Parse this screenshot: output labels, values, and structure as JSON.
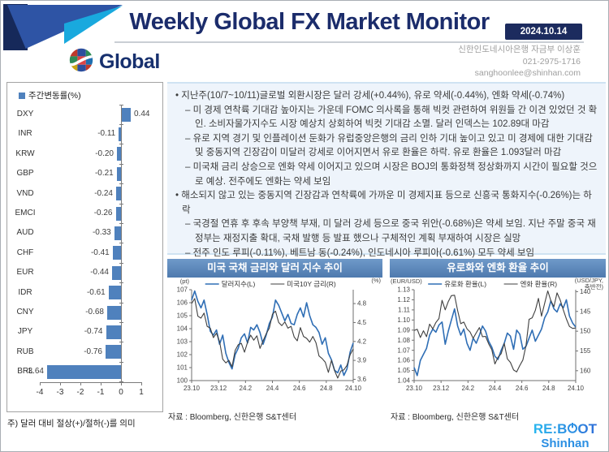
{
  "header": {
    "title": "Weekly Global FX Market Monitor",
    "date": "2024.10.14",
    "brand": "Global",
    "contact_lines": [
      "신한인도네시아은행 자금부 이상훈",
      "021-2975-1716",
      "sanghoonlee@shinhan.com"
    ]
  },
  "analysis": {
    "bullets": [
      {
        "level": 1,
        "text": "지난주(10/7~10/11)글로벌 외환시장은 달러 강세(+0.44%), 유로 약세(-0.44%), 엔화 약세(-0.74%)"
      },
      {
        "level": 2,
        "text": "미 경제 연착륙 기대감 높아지는 가운데 FOMC 의사록을 통해 빅컷 관련하여 위원들 간 이견 있었던 것 확인. 소비자물가지수도 시장 예상치 상회하여 빅컷 기대감 소멸. 달러 인덱스는 102.89대 마감"
      },
      {
        "level": 2,
        "text": "유로 지역 경기 및 인플레이션 둔화가 유럽중앙은행의 금리 인하 기대 높이고 있고 미 경제에 대한 기대감 및 중동지역 긴장감이 미달러 강세로 이어지면서 유로 환율은 하락. 유로 환율은 1.093달러 마감"
      },
      {
        "level": 2,
        "text": "미국채 금리 상승으로 엔화 약세 이어지고 있으며 시장은 BOJ의 통화정책 정상화까지 시간이 필요할 것으로 예상. 전주에도 엔화는 약세 보임"
      },
      {
        "level": 1,
        "text": "해소되지 않고 있는 중동지역 긴장감과 연착륙에 가까운 미 경제지표 등으로 신흥국 통화지수(-0.26%)는 하락"
      },
      {
        "level": 2,
        "text": "국경절 연휴 후 후속 부양책 부재, 미 달러 강세 등으로 중국 위안(-0.68%)은 약세 보임. 지난 주말 중국 재정부는 재정지출 확대, 국채 발행 등 발표 했으나 구체적인 계획 부재하여 시장은 실망"
      },
      {
        "level": 2,
        "text": "전주 인도 루피(-0.11%), 베트남 동(-0.24%), 인도네시아 루피아(-0.61%) 모두 약세 보임"
      }
    ]
  },
  "chart_data": [
    {
      "type": "bar",
      "orientation": "horizontal",
      "title": "주간변동률(%)",
      "categories": [
        "DXY",
        "INR",
        "KRW",
        "GBP",
        "VND",
        "EMCI",
        "AUD",
        "CHF",
        "EUR",
        "IDR",
        "CNY",
        "JPY",
        "RUB",
        "BRL"
      ],
      "values": [
        0.44,
        -0.11,
        -0.2,
        -0.21,
        -0.24,
        -0.26,
        -0.33,
        -0.41,
        -0.44,
        -0.61,
        -0.68,
        -0.74,
        -0.76,
        -3.64
      ],
      "xlim": [
        -4,
        1
      ],
      "xticks": [
        -4,
        -3,
        -2,
        -1,
        0,
        1
      ],
      "bar_color": "#4f81bd",
      "footnote": "주) 달러 대비 절상(+)/절하(-)를 의미"
    },
    {
      "type": "line",
      "title": "미국 국채 금리와 달러 지수 추이",
      "source": "자료 : Bloomberg, 신한은행 S&T센터",
      "x_ticks": [
        "23.10",
        "23.12",
        "24.2",
        "24.4",
        "24.6",
        "24.8",
        "24.10"
      ],
      "left_axis": {
        "label_lines": [
          "(pt)"
        ],
        "min": 100,
        "max": 107,
        "ticks": [
          107,
          106,
          105,
          104,
          103,
          102,
          101,
          100
        ],
        "decimals": 0
      },
      "right_axis": {
        "label_lines": [
          "(%)"
        ],
        "min": 3.58,
        "max": 5.02,
        "ticks": [
          4.8,
          4.5,
          4.2,
          3.9,
          3.6
        ],
        "decimals": 1,
        "reversed": false
      },
      "series": [
        {
          "name": "달러지수(L)",
          "axis": "left",
          "color": "#2f6eb5",
          "width": 1.6,
          "values": [
            106.2,
            106.9,
            106.1,
            105.6,
            106.2,
            105.1,
            103.8,
            103.5,
            103.9,
            102.8,
            103.5,
            102.1,
            101.4,
            100.9,
            102.0,
            102.5,
            103.3,
            103.6,
            102.9,
            104.1,
            103.9,
            104.3,
            103.7,
            102.8,
            103.5,
            104.4,
            104.9,
            106.2,
            105.8,
            105.2,
            104.6,
            105.1,
            104.4,
            104.3,
            105.1,
            105.6,
            104.9,
            106.0,
            105.0,
            104.3,
            104.1,
            103.7,
            102.8,
            103.3,
            102.1,
            101.6,
            100.8,
            100.6,
            101.2,
            100.4,
            100.9,
            102.2,
            102.9
          ]
        },
        {
          "name": "미국10Y 금리(R)",
          "axis": "right",
          "color": "#3f3f3f",
          "width": 1.1,
          "values": [
            4.8,
            4.88,
            4.6,
            4.57,
            4.65,
            4.44,
            4.41,
            4.26,
            4.33,
            4.2,
            3.92,
            3.86,
            3.9,
            3.8,
            4.06,
            4.15,
            4.17,
            4.03,
            4.19,
            4.3,
            4.22,
            4.29,
            4.09,
            4.21,
            4.32,
            4.41,
            4.63,
            4.68,
            4.5,
            4.45,
            4.51,
            4.41,
            4.44,
            4.27,
            4.21,
            4.42,
            4.28,
            4.25,
            4.19,
            4.28,
            4.18,
            3.97,
            3.93,
            3.87,
            3.71,
            3.9,
            3.74,
            3.62,
            3.73,
            3.75,
            3.82,
            3.99,
            4.08
          ]
        }
      ]
    },
    {
      "type": "line",
      "title": "유로화와 엔화 환율 추이",
      "source": "자료 : Bloomberg, 신한은행 S&T센터",
      "x_ticks": [
        "23.10",
        "23.12",
        "24.2",
        "24.4",
        "24.6",
        "24.8",
        "24.10"
      ],
      "left_axis": {
        "label_lines": [
          "(EUR/USD)"
        ],
        "min": 1.04,
        "max": 1.13,
        "ticks": [
          1.13,
          1.12,
          1.11,
          1.1,
          1.09,
          1.08,
          1.07,
          1.06,
          1.05,
          1.04
        ],
        "decimals": 2
      },
      "right_axis": {
        "label_lines": [
          "(USD/JPY,",
          "축반전)"
        ],
        "min": 139.5,
        "max": 162.5,
        "ticks": [
          140,
          145,
          150,
          155,
          160
        ],
        "decimals": 0,
        "reversed": true
      },
      "series": [
        {
          "name": "유로화 환율(L)",
          "axis": "left",
          "color": "#2f6eb5",
          "width": 1.6,
          "values": [
            1.053,
            1.045,
            1.06,
            1.066,
            1.072,
            1.085,
            1.091,
            1.088,
            1.095,
            1.098,
            1.076,
            1.089,
            1.1,
            1.111,
            1.094,
            1.085,
            1.091,
            1.077,
            1.07,
            1.082,
            1.077,
            1.085,
            1.094,
            1.089,
            1.079,
            1.073,
            1.064,
            1.061,
            1.07,
            1.077,
            1.087,
            1.084,
            1.071,
            1.09,
            1.086,
            1.071,
            1.074,
            1.082,
            1.09,
            1.079,
            1.085,
            1.091,
            1.102,
            1.108,
            1.119,
            1.111,
            1.108,
            1.116,
            1.112,
            1.12,
            1.104,
            1.097,
            1.093
          ]
        },
        {
          "name": "엔화 환율(R)",
          "axis": "right",
          "color": "#3f3f3f",
          "width": 1.1,
          "values": [
            149.8,
            149.5,
            151.6,
            149.9,
            151.4,
            148.2,
            149.4,
            147.8,
            146.8,
            142.2,
            144.6,
            142.5,
            141.0,
            140.9,
            144.8,
            148.1,
            147.7,
            149.4,
            150.2,
            151.8,
            150.4,
            149.1,
            151.4,
            151.3,
            153.2,
            154.7,
            158.3,
            156.6,
            155.7,
            153.1,
            157.0,
            157.9,
            159.8,
            160.3,
            158.7,
            157.3,
            153.6,
            147.0,
            146.6,
            144.7,
            141.7,
            146.2,
            143.0,
            139.8,
            142.3,
            143.8,
            140.3,
            142.1,
            144.6,
            146.9,
            148.8,
            149.3,
            149.2
          ]
        }
      ]
    }
  ],
  "footer": {
    "logo_top_pre": "RE:B",
    "logo_top_post": "OT",
    "logo_bottom": "Shinhan"
  },
  "colors": {
    "title_navy": "#1b2c6b",
    "bar_blue": "#4f81bd",
    "line_blue": "#2f6eb5",
    "line_black": "#3f3f3f",
    "chart_header_blue": "#4e7aae",
    "panel_bg": "#eef4fb"
  }
}
